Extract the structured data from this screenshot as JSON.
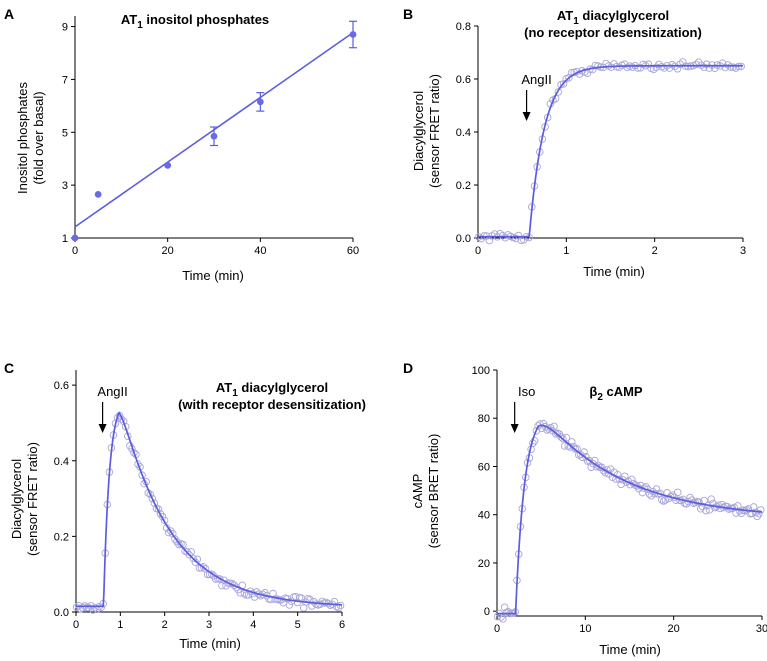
{
  "chart_data": [
    {
      "type": "scatter",
      "panel": "A",
      "title": "AT1 inositol phosphates",
      "title_parts": {
        "pre": "AT",
        "sub": "1",
        "post": " inositol phosphates"
      },
      "xlabel": "Time (min)",
      "ylabel": [
        "Inositol phosphates",
        "(fold over basal)"
      ],
      "xlim": [
        0,
        60
      ],
      "ylim": [
        1,
        9.4
      ],
      "xticks": [
        0,
        20,
        40,
        60
      ],
      "yticks": [
        1,
        3,
        5,
        7,
        9
      ],
      "points": [
        {
          "x": 0,
          "y": 1.0
        },
        {
          "x": 5,
          "y": 2.65
        },
        {
          "x": 20,
          "y": 3.75
        },
        {
          "x": 30,
          "y": 4.85,
          "err": 0.35
        },
        {
          "x": 40,
          "y": 6.15,
          "err": 0.35
        },
        {
          "x": 60,
          "y": 8.7,
          "err": 0.5
        }
      ],
      "fit": {
        "kind": "linear",
        "intercept": 1.42,
        "slope": 0.1225
      }
    },
    {
      "type": "scatter",
      "panel": "B",
      "title": "AT1 diacylglycerol",
      "title_parts": {
        "pre": "AT",
        "sub": "1",
        "post": " diacylglycerol"
      },
      "subtitle": "(no receptor desensitization)",
      "xlabel": "Time (min)",
      "ylabel": [
        "Diacylglycerol",
        "(sensor FRET ratio)"
      ],
      "xlim": [
        0,
        3
      ],
      "ylim": [
        0,
        0.8
      ],
      "xticks": [
        0,
        1,
        2,
        3
      ],
      "ytick_labels": [
        "0.0",
        "0.2",
        "0.4",
        "0.6",
        "0.8"
      ],
      "yticks": [
        0,
        0.2,
        0.4,
        0.6,
        0.8
      ],
      "annotation": {
        "text": "AngII",
        "x": 0.55
      },
      "model": {
        "kind": "rise",
        "onset": 0.58,
        "base": 0.005,
        "amp": 0.645,
        "tau": 0.17,
        "duration": 3,
        "noise": 0.014,
        "n": 100
      }
    },
    {
      "type": "scatter",
      "panel": "C",
      "title": "AT1 diacylglycerol",
      "title_parts": {
        "pre": "AT",
        "sub": "1",
        "post": " diacylglycerol"
      },
      "subtitle": "(with receptor desensitization)",
      "xlabel": "Time (min)",
      "ylabel": [
        "Diacylglycerol",
        "(sensor FRET ratio)"
      ],
      "xlim": [
        0,
        6
      ],
      "ylim": [
        0,
        0.64
      ],
      "xticks": [
        0,
        1,
        2,
        3,
        4,
        5,
        6
      ],
      "ytick_labels": [
        "0.0",
        "0.2",
        "0.4",
        "0.6"
      ],
      "yticks": [
        0,
        0.2,
        0.4,
        0.6
      ],
      "annotation": {
        "text": "AngII",
        "x": 0.6
      },
      "model": {
        "kind": "risedecay",
        "onset": 0.62,
        "base": 0.015,
        "amp": 0.565,
        "trise": 0.13,
        "tdec": 1.15,
        "floor": 0.012,
        "duration": 6,
        "noise": 0.012,
        "n": 130
      }
    },
    {
      "type": "scatter",
      "panel": "D",
      "title": "β2 cAMP",
      "title_parts": {
        "pre": "β",
        "sub": "2",
        "post": " cAMP"
      },
      "xlabel": "Time (min)",
      "ylabel": [
        "cAMP",
        "(sensor BRET ratio)"
      ],
      "xlim": [
        0,
        30
      ],
      "ylim": [
        -2,
        100
      ],
      "xticks": [
        0,
        10,
        20,
        30
      ],
      "yticks": [
        0,
        20,
        40,
        60,
        80,
        100
      ],
      "annotation": {
        "text": "Iso",
        "x": 2
      },
      "model": {
        "kind": "risedecay2",
        "onset": 2.1,
        "base": -1,
        "peak": 83,
        "trise": 1.0,
        "tdec": 9.5,
        "plateau": 38,
        "duration": 30,
        "noise": 2.2,
        "n": 150
      }
    }
  ],
  "colors": {
    "line": "#5b5de0",
    "marker": "#6a6ae6",
    "open_marker": "#a9a6d6",
    "axis": "#000000"
  }
}
